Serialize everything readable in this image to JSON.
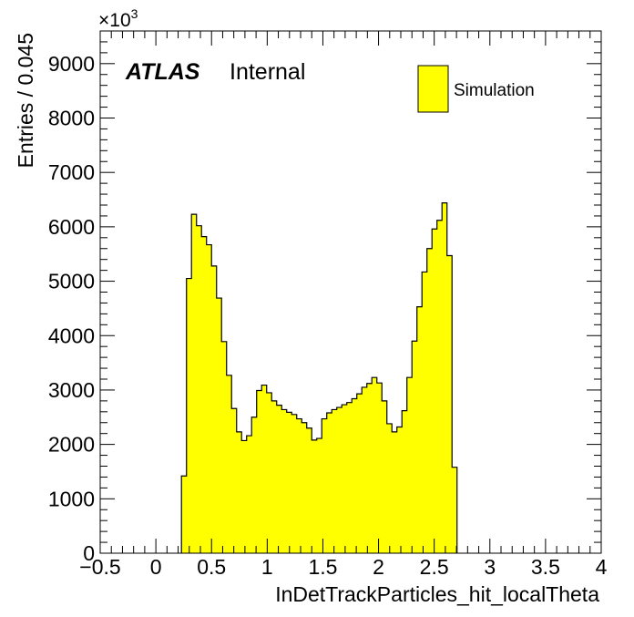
{
  "chart_data": {
    "type": "bar",
    "xlabel": "InDetTrackParticles_hit_localTheta",
    "ylabel": "Entries / 0.045",
    "y_multiplier": "×10",
    "y_multiplier_exp": "3",
    "xlim": [
      -0.5,
      4.0
    ],
    "ylim": [
      0,
      9600
    ],
    "bin_width": 0.045,
    "x_ticks": [
      -0.5,
      0,
      0.5,
      1,
      1.5,
      2,
      2.5,
      3,
      3.5,
      4
    ],
    "x_tick_labels": [
      "−0.5",
      "0",
      "0.5",
      "1",
      "1.5",
      "2",
      "2.5",
      "3",
      "3.5",
      "4"
    ],
    "y_ticks": [
      0,
      1000,
      2000,
      3000,
      4000,
      5000,
      6000,
      7000,
      8000,
      9000
    ],
    "y_tick_labels": [
      "0",
      "1000",
      "2000",
      "3000",
      "4000",
      "5000",
      "6000",
      "7000",
      "8000",
      "9000"
    ],
    "grid": false,
    "legend_position": "top-right",
    "series": [
      {
        "name": "Simulation",
        "color": "#ffff00",
        "x_start": 0.23,
        "values": [
          1420,
          5050,
          6230,
          6020,
          5820,
          5670,
          5280,
          4690,
          3890,
          3270,
          2660,
          2230,
          2070,
          2160,
          2500,
          2990,
          3090,
          2950,
          2800,
          2720,
          2640,
          2590,
          2550,
          2470,
          2400,
          2300,
          2080,
          2110,
          2470,
          2580,
          2640,
          2680,
          2730,
          2770,
          2840,
          2930,
          3050,
          3120,
          3230,
          3130,
          2800,
          2380,
          2230,
          2320,
          2620,
          3230,
          3900,
          4530,
          5170,
          5600,
          5960,
          6120,
          6440,
          5470,
          1580
        ]
      }
    ]
  },
  "labels": {
    "atlas": "ATLAS",
    "internal": "Internal",
    "legend_entry": "Simulation"
  }
}
